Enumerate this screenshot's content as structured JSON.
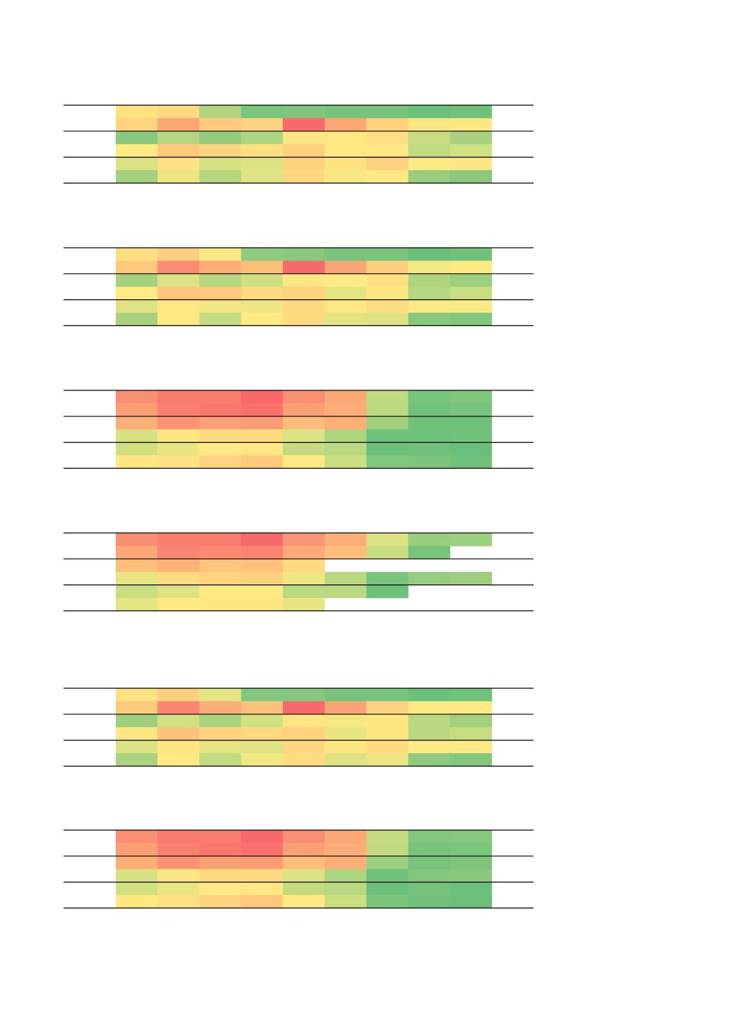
{
  "chart_data": [
    {
      "type": "heatmap",
      "title": "",
      "rows": 6,
      "cols": 9,
      "values": [
        [
          "#fde282",
          "#fdd97f",
          "#b0d57e",
          "#7bc57c",
          "#80c67d",
          "#79c47c",
          "#78c47c",
          "#6bc07b",
          "#6fc17b"
        ],
        [
          "#fed480",
          "#fca776",
          "#fec97d",
          "#fed280",
          "#f8696b",
          "#fca776",
          "#fed17f",
          "#fee683",
          "#fee683"
        ],
        [
          "#8ac97d",
          "#b3d67f",
          "#94cc7d",
          "#aed57f",
          "#fee683",
          "#fee683",
          "#fede82",
          "#c5dc81",
          "#a8d27f"
        ],
        [
          "#feeb84",
          "#fec87d",
          "#fed480",
          "#fee282",
          "#fed17f",
          "#fee983",
          "#fee983",
          "#c1da80",
          "#d1e082"
        ],
        [
          "#dbe382",
          "#fee182",
          "#d6e182",
          "#dde382",
          "#fed380",
          "#fee282",
          "#fdd17f",
          "#feea84",
          "#fee683"
        ],
        [
          "#a4d17f",
          "#ece682",
          "#b6d77f",
          "#e0e383",
          "#fed880",
          "#f7e883",
          "#fee983",
          "#99ce7e",
          "#8ac97d"
        ]
      ]
    },
    {
      "type": "heatmap",
      "title": "",
      "rows": 6,
      "cols": 9,
      "values": [
        [
          "#fedd81",
          "#fecf7f",
          "#fbe983",
          "#8fca7e",
          "#8ac97d",
          "#79c47c",
          "#78c47c",
          "#6bc07b",
          "#6fc17b"
        ],
        [
          "#fdc97d",
          "#fa8c72",
          "#fcad78",
          "#fbbf7b",
          "#f8696b",
          "#fba576",
          "#fecf7f",
          "#f4e883",
          "#fee983"
        ],
        [
          "#a6d17f",
          "#dde382",
          "#b6d77f",
          "#d0df81",
          "#fee783",
          "#feeb84",
          "#fee182",
          "#b1d57f",
          "#9ccf7e"
        ],
        [
          "#feeb84",
          "#fec67d",
          "#fec97d",
          "#fedb81",
          "#fed380",
          "#e5e482",
          "#fee783",
          "#b4d67f",
          "#c9dd81"
        ],
        [
          "#e0e383",
          "#fee883",
          "#f2e783",
          "#ede683",
          "#fed981",
          "#fee683",
          "#fedd81",
          "#feea84",
          "#feea84"
        ],
        [
          "#a8d27f",
          "#fee883",
          "#c4db80",
          "#fee983",
          "#fedd81",
          "#e5e482",
          "#e0e383",
          "#87c87d",
          "#83c77d"
        ]
      ]
    },
    {
      "type": "heatmap",
      "title": "",
      "rows": 6,
      "cols": 9,
      "values": [
        [
          "#fa8e72",
          "#f97b6e",
          "#f97d6f",
          "#f8696b",
          "#fa8e72",
          "#fca776",
          "#c0da80",
          "#79c47c",
          "#80c67d"
        ],
        [
          "#fba075",
          "#f97f6f",
          "#f9786e",
          "#f8716d",
          "#fba075",
          "#fcad78",
          "#bbd980",
          "#73c27c",
          "#79c47c"
        ],
        [
          "#fcb077",
          "#fa9273",
          "#fba075",
          "#fa9d74",
          "#fdbd7b",
          "#fcb077",
          "#a1d07f",
          "#70c27b",
          "#6fc17b"
        ],
        [
          "#d8e182",
          "#fee683",
          "#feda81",
          "#feda81",
          "#dbe382",
          "#add47f",
          "#6ec17b",
          "#6dc17b",
          "#73c27c"
        ],
        [
          "#d2df81",
          "#e8e583",
          "#fee983",
          "#fee683",
          "#c4db80",
          "#b9d880",
          "#6ac07b",
          "#6fc17b",
          "#68bf7b"
        ],
        [
          "#fee683",
          "#fee182",
          "#fed480",
          "#fdca7d",
          "#fee983",
          "#cbde81",
          "#83c77d",
          "#7dc57c",
          "#6fc17b"
        ]
      ]
    },
    {
      "type": "heatmap",
      "title": "",
      "rows": 6,
      "cols": 9,
      "values": [
        [
          "#fa8e72",
          "#f97f6f",
          "#f9806f",
          "#f8696b",
          "#fa9573",
          "#fcad78",
          "#dbe382",
          "#96cd7e",
          "#9ccf7e"
        ],
        [
          "#fca576",
          "#f98471",
          "#fa8a72",
          "#f98270",
          "#fcaa77",
          "#fdbe7b",
          "#c9dd81",
          "#79c47c",
          null
        ],
        [
          "#fdc07b",
          "#fcb378",
          "#fdc47c",
          "#fec27c",
          "#fedb81",
          null,
          null,
          null,
          null
        ],
        [
          "#e8e583",
          "#fedd81",
          "#fed480",
          "#fed17f",
          "#f0e784",
          "#b9d880",
          "#79c47c",
          "#96cd7e",
          "#9ccf7e"
        ],
        [
          "#c9dd81",
          "#e0e383",
          "#fee983",
          "#fee983",
          "#bbd980",
          "#b9d880",
          "#6ec17b",
          null,
          null
        ],
        [
          "#e5e482",
          "#fee983",
          "#fee683",
          "#fee683",
          "#e8e583",
          null,
          null,
          null,
          null
        ]
      ]
    },
    {
      "type": "heatmap",
      "title": "",
      "rows": 6,
      "cols": 9,
      "values": [
        [
          "#fee182",
          "#fdd07f",
          "#e5e482",
          "#83c77d",
          "#84c77d",
          "#79c47c",
          "#78c47c",
          "#6bc07b",
          "#6fc17b"
        ],
        [
          "#fdc97d",
          "#f98771",
          "#fcac77",
          "#fdc17b",
          "#f8696b",
          "#fba576",
          "#fed480",
          "#fee983",
          "#fee983"
        ],
        [
          "#9fcf7e",
          "#d3e082",
          "#abd37f",
          "#d1e082",
          "#fee582",
          "#f5e884",
          "#fee683",
          "#b9d880",
          "#a2d07f"
        ],
        [
          "#fee683",
          "#fdc27c",
          "#fed480",
          "#fed981",
          "#fed17f",
          "#e9e583",
          "#fee683",
          "#bad880",
          "#c6dc81"
        ],
        [
          "#dbe382",
          "#fee683",
          "#e5e482",
          "#e0e383",
          "#fed880",
          "#fee683",
          "#fedb81",
          "#feea84",
          "#feea84"
        ],
        [
          "#abd37f",
          "#fee983",
          "#c4db80",
          "#f1e783",
          "#fedd81",
          "#e0e383",
          "#ebe583",
          "#8fca7e",
          "#85c77d"
        ]
      ]
    },
    {
      "type": "heatmap",
      "title": "",
      "rows": 6,
      "cols": 9,
      "values": [
        [
          "#fa8e72",
          "#f97b6e",
          "#f97d6f",
          "#f8696b",
          "#fa8e72",
          "#fca776",
          "#c4db80",
          "#83c77d",
          "#86c87d"
        ],
        [
          "#fba075",
          "#f97f6f",
          "#f9786e",
          "#f8716d",
          "#fba075",
          "#fcad78",
          "#c1da80",
          "#79c47c",
          "#7bc57c"
        ],
        [
          "#fcb077",
          "#fa9273",
          "#fba075",
          "#fa9d74",
          "#fdbd7b",
          "#fcb077",
          "#9ccf7e",
          "#79c47c",
          "#7dc57c"
        ],
        [
          "#d8e182",
          "#fee683",
          "#feda81",
          "#feda81",
          "#dbe382",
          "#add47f",
          "#70c27b",
          "#83c77d",
          "#8ac97d"
        ],
        [
          "#d2df81",
          "#e8e583",
          "#fee983",
          "#fee683",
          "#c4db80",
          "#b9d880",
          "#6bc07b",
          "#74c37c",
          "#6bc07b"
        ],
        [
          "#fee683",
          "#fee182",
          "#fed480",
          "#fdca7d",
          "#fee983",
          "#cbde81",
          "#7dc57c",
          "#72c27c",
          "#6abf7b"
        ]
      ]
    }
  ]
}
